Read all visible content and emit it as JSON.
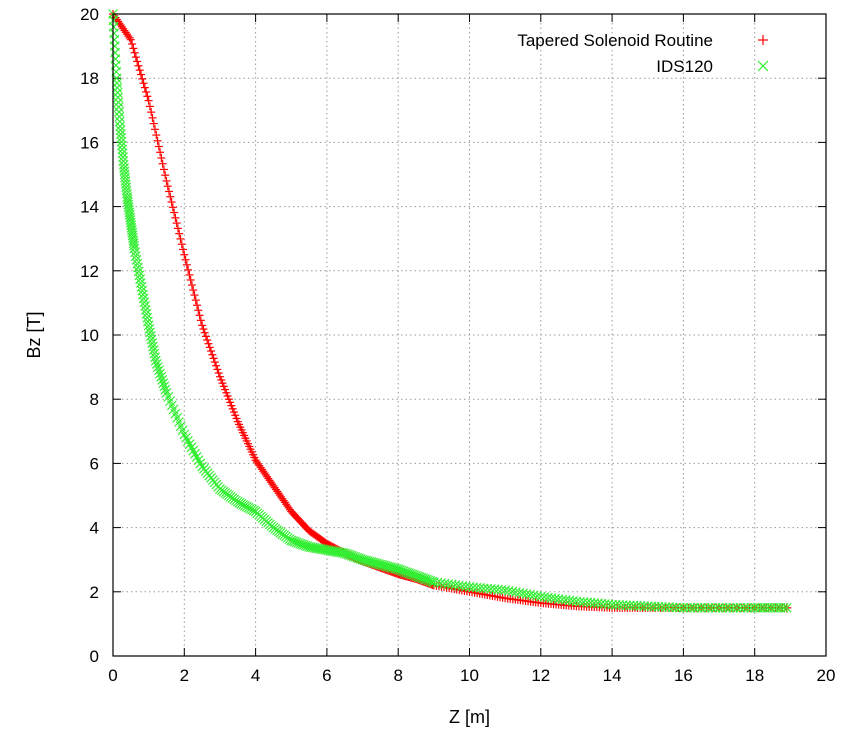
{
  "chart_data": {
    "type": "scatter",
    "title": "",
    "xlabel": "Z [m]",
    "ylabel": "Bz [T]",
    "xlim": [
      0,
      20
    ],
    "ylim": [
      0,
      20
    ],
    "xticks": [
      0,
      2,
      4,
      6,
      8,
      10,
      12,
      14,
      16,
      18,
      20
    ],
    "yticks": [
      0,
      2,
      4,
      6,
      8,
      10,
      12,
      14,
      16,
      18,
      20
    ],
    "grid": true,
    "legend_position": "top-right",
    "series": [
      {
        "name": "Tapered Solenoid Routine",
        "marker": "plus",
        "color": "#ff0000",
        "x": [
          0,
          0.5,
          1,
          1.5,
          2,
          2.5,
          3,
          3.5,
          4,
          4.5,
          5,
          5.5,
          6,
          6.5,
          7,
          7.5,
          8,
          8.5,
          9,
          10,
          11,
          12,
          13,
          14,
          15,
          16,
          17,
          18,
          18.9
        ],
        "y": [
          20.0,
          19.2,
          17.3,
          14.8,
          12.5,
          10.3,
          8.7,
          7.3,
          6.1,
          5.3,
          4.5,
          3.9,
          3.5,
          3.2,
          2.95,
          2.75,
          2.55,
          2.4,
          2.2,
          2.0,
          1.8,
          1.65,
          1.55,
          1.5,
          1.5,
          1.5,
          1.5,
          1.5,
          1.5
        ]
      },
      {
        "name": "IDS120",
        "marker": "cross",
        "color": "#33ee33",
        "x": [
          0,
          0.1,
          0.2,
          0.3,
          0.4,
          0.5,
          0.6,
          0.8,
          1,
          1.2,
          1.5,
          2,
          2.5,
          3,
          3.5,
          4,
          4.5,
          5,
          5.5,
          6,
          6.5,
          7,
          7.5,
          8,
          8.5,
          9,
          10,
          11,
          12,
          13,
          14,
          15,
          16,
          17,
          18,
          18.9
        ],
        "y": [
          20.0,
          18.0,
          16.5,
          15.3,
          14.3,
          13.5,
          12.7,
          11.5,
          10.3,
          9.2,
          8.2,
          6.9,
          5.9,
          5.2,
          4.8,
          4.5,
          4.0,
          3.6,
          3.4,
          3.3,
          3.2,
          3.0,
          2.85,
          2.7,
          2.5,
          2.3,
          2.15,
          2.05,
          1.85,
          1.7,
          1.6,
          1.55,
          1.5,
          1.5,
          1.5,
          1.5
        ]
      }
    ]
  }
}
